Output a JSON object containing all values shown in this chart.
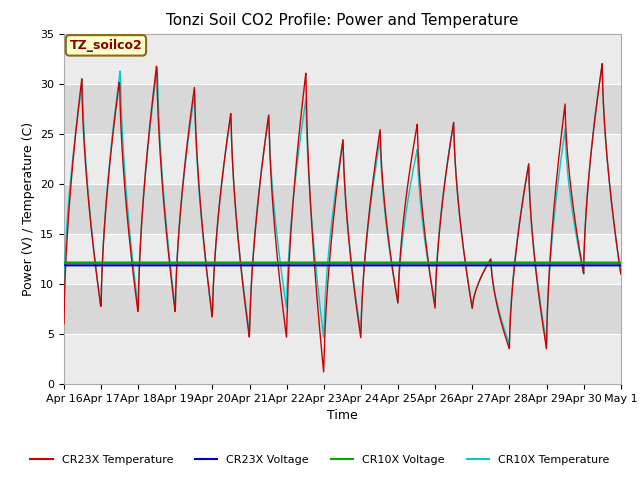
{
  "title": "Tonzi Soil CO2 Profile: Power and Temperature",
  "xlabel": "Time",
  "ylabel": "Power (V) / Temperature (C)",
  "ylim": [
    0,
    35
  ],
  "yticks": [
    0,
    5,
    10,
    15,
    20,
    25,
    30,
    35
  ],
  "x_labels": [
    "Apr 16",
    "Apr 17",
    "Apr 18",
    "Apr 19",
    "Apr 20",
    "Apr 21",
    "Apr 22",
    "Apr 23",
    "Apr 24",
    "Apr 25",
    "Apr 26",
    "Apr 27",
    "Apr 28",
    "Apr 29",
    "Apr 30",
    "May 1"
  ],
  "cr23x_voltage_value": 11.85,
  "cr10x_voltage_value": 12.1,
  "annotation_text": "TZ_soilco2",
  "annotation_color": "#8B0000",
  "annotation_bg": "#FFFFCC",
  "annotation_border": "#8B6914",
  "colors": {
    "cr23x_temp": "#CC0000",
    "cr23x_voltage": "#0000CC",
    "cr10x_voltage": "#00AA00",
    "cr10x_temp": "#00CCCC"
  },
  "legend_labels": [
    "CR23X Temperature",
    "CR23X Voltage",
    "CR10X Voltage",
    "CR10X Temperature"
  ],
  "plot_bg_light": "#EBEBEB",
  "plot_bg_dark": "#D8D8D8",
  "band_edges": [
    0,
    5,
    10,
    15,
    20,
    25,
    30,
    35
  ]
}
